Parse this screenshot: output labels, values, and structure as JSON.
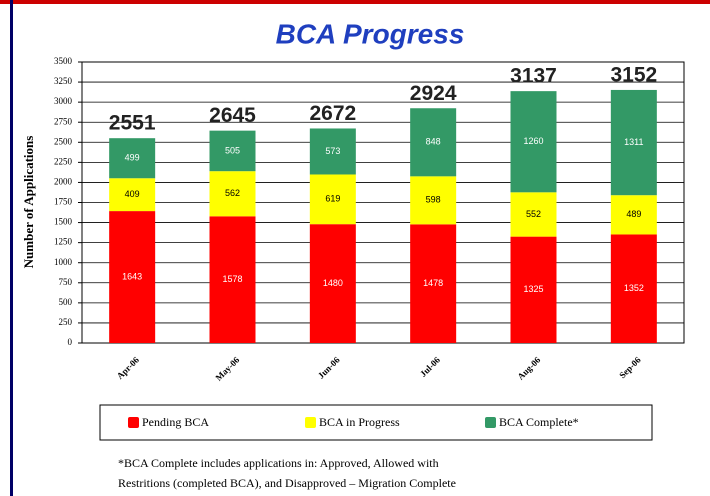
{
  "chart_data": {
    "type": "stacked_bar",
    "title": "BCA Progress",
    "y_label": "Number of Applications",
    "categories": [
      "Apr-06",
      "May-06",
      "Jun-06",
      "Jul-06",
      "Aug-06",
      "Sep-06"
    ],
    "series": [
      {
        "name": "Pending BCA",
        "color": "#ff0000",
        "values": [
          1643,
          1578,
          1480,
          1478,
          1325,
          1352
        ]
      },
      {
        "name": "BCA in Progress",
        "color": "#ffff00",
        "values": [
          409,
          562,
          619,
          598,
          552,
          489
        ]
      },
      {
        "name": "BCA Complete*",
        "color": "#339966",
        "values": [
          499,
          505,
          573,
          848,
          1260,
          1311
        ]
      }
    ],
    "totals": [
      2551,
      2645,
      2672,
      2924,
      3137,
      3152
    ],
    "ylim": [
      0,
      3500
    ],
    "yticks": [
      0,
      250,
      500,
      750,
      1000,
      1250,
      1500,
      1750,
      2000,
      2250,
      2500,
      2750,
      3000,
      3250,
      3500
    ],
    "grid": true,
    "footnote": [
      "*BCA Complete includes applications in: Approved, Allowed with",
      "Restritions (completed BCA), and Disapproved – Migration Complete"
    ]
  }
}
